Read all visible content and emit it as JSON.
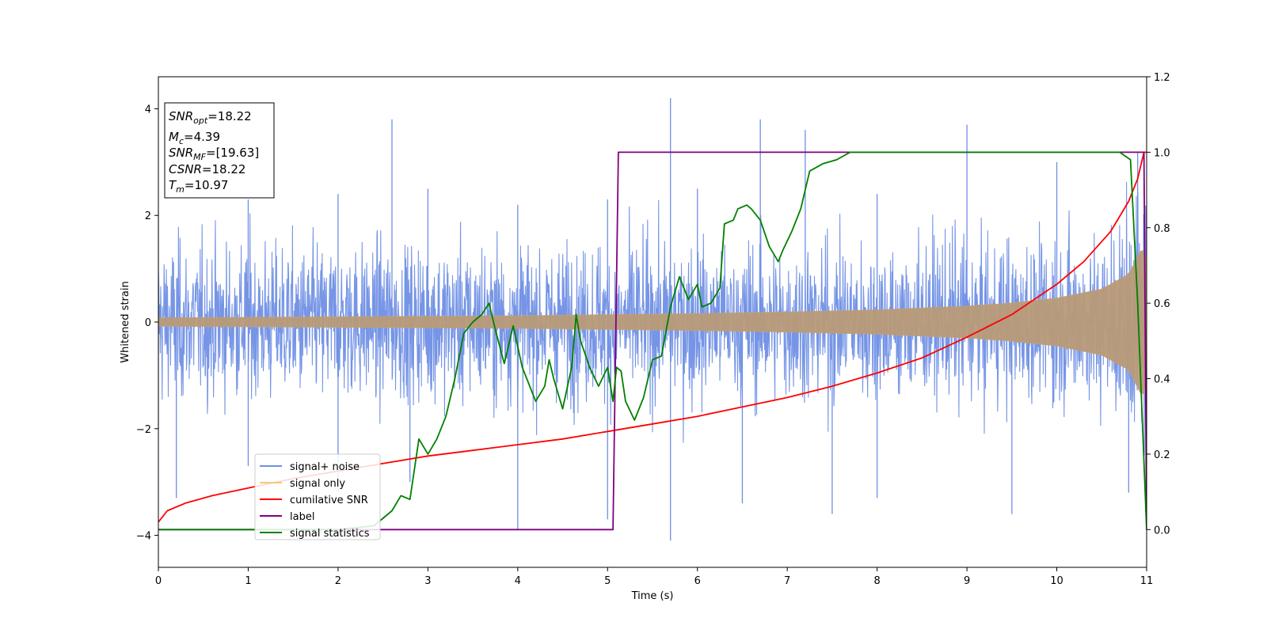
{
  "chart_data": {
    "type": "line",
    "xlabel": "Time (s)",
    "ylabel": "Whitened strain",
    "xlim": [
      0,
      11
    ],
    "ylim_left": [
      -4.6,
      4.6
    ],
    "ylim_right": [
      -0.1,
      1.2
    ],
    "x_ticks": [
      "0",
      "1",
      "2",
      "3",
      "4",
      "5",
      "6",
      "7",
      "8",
      "9",
      "10",
      "11"
    ],
    "y_left_ticks": [
      "−4",
      "−2",
      "0",
      "2",
      "4"
    ],
    "y_right_ticks": [
      "0.0",
      "0.2",
      "0.4",
      "0.6",
      "0.8",
      "1.0",
      "1.2"
    ],
    "grid": false,
    "info_box": {
      "snr_opt": {
        "sym": "SNR",
        "sub": "opt",
        "value": "=18.22"
      },
      "mc": {
        "sym": "M",
        "sub": "c",
        "value": "=4.39"
      },
      "snr_mf": {
        "sym": "SNR",
        "sub": "MF",
        "value": "=[19.63]"
      },
      "csnr": {
        "sym": "CSNR",
        "sub": "",
        "value": "=18.22"
      },
      "tm": {
        "sym": "T",
        "sub": "m",
        "value": "=10.97"
      }
    },
    "legend": {
      "placement": "lower-left",
      "entries": [
        {
          "label": "signal+ noise",
          "color": "#6f8fe5"
        },
        {
          "label": "signal only",
          "color": "#f5c97a"
        },
        {
          "label": "cumilative SNR",
          "color": "#ff0000"
        },
        {
          "label": "label",
          "color": "#800080"
        },
        {
          "label": "signal statistics",
          "color": "#008000"
        }
      ]
    },
    "series": [
      {
        "name": "signal+ noise",
        "axis": "left",
        "color": "#6f8fe5",
        "description_note": "",
        "peaks_upper": [
          [
            0,
            2.1
          ],
          [
            1,
            2.3
          ],
          [
            2,
            2.4
          ],
          [
            2.6,
            3.8
          ],
          [
            3,
            2.5
          ],
          [
            4,
            2.2
          ],
          [
            5,
            2.3
          ],
          [
            5.7,
            4.2
          ],
          [
            6,
            2.5
          ],
          [
            6.7,
            3.8
          ],
          [
            7.2,
            3.6
          ],
          [
            8,
            2.4
          ],
          [
            9,
            3.7
          ],
          [
            10,
            3.0
          ],
          [
            10.9,
            3.2
          ]
        ],
        "peaks_lower": [
          [
            0,
            -2.0
          ],
          [
            0.2,
            -3.3
          ],
          [
            1,
            -2.7
          ],
          [
            2,
            -3.2
          ],
          [
            2.8,
            -3.0
          ],
          [
            4,
            -3.9
          ],
          [
            5,
            -3.7
          ],
          [
            5.7,
            -4.1
          ],
          [
            6.5,
            -3.4
          ],
          [
            7.5,
            -3.6
          ],
          [
            8,
            -3.3
          ],
          [
            9.5,
            -3.6
          ],
          [
            10.8,
            -3.2
          ]
        ]
      },
      {
        "name": "signal only",
        "axis": "left",
        "color": "#f5c97a",
        "envelope": [
          [
            0,
            0.08
          ],
          [
            2,
            0.1
          ],
          [
            4,
            0.12
          ],
          [
            5,
            0.14
          ],
          [
            6,
            0.16
          ],
          [
            7,
            0.19
          ],
          [
            8,
            0.23
          ],
          [
            9,
            0.3
          ],
          [
            9.5,
            0.36
          ],
          [
            10,
            0.45
          ],
          [
            10.5,
            0.62
          ],
          [
            10.8,
            0.9
          ],
          [
            10.95,
            1.4
          ],
          [
            11,
            1.2
          ]
        ]
      },
      {
        "name": "cumilative SNR",
        "axis": "right",
        "color": "#ff0000",
        "points": [
          [
            0,
            0.02
          ],
          [
            0.1,
            0.05
          ],
          [
            0.3,
            0.07
          ],
          [
            0.6,
            0.09
          ],
          [
            1,
            0.11
          ],
          [
            1.5,
            0.135
          ],
          [
            2,
            0.155
          ],
          [
            2.5,
            0.175
          ],
          [
            3,
            0.195
          ],
          [
            3.5,
            0.21
          ],
          [
            4,
            0.225
          ],
          [
            4.5,
            0.24
          ],
          [
            5,
            0.26
          ],
          [
            5.5,
            0.28
          ],
          [
            6,
            0.3
          ],
          [
            6.5,
            0.325
          ],
          [
            7,
            0.35
          ],
          [
            7.5,
            0.38
          ],
          [
            8,
            0.415
          ],
          [
            8.5,
            0.455
          ],
          [
            9,
            0.51
          ],
          [
            9.5,
            0.57
          ],
          [
            10,
            0.65
          ],
          [
            10.3,
            0.71
          ],
          [
            10.6,
            0.79
          ],
          [
            10.8,
            0.87
          ],
          [
            10.9,
            0.93
          ],
          [
            10.97,
            1.0
          ],
          [
            11,
            1.0
          ]
        ]
      },
      {
        "name": "label",
        "axis": "right",
        "color": "#800080",
        "points": [
          [
            0,
            0.0
          ],
          [
            5.06,
            0.0
          ],
          [
            5.12,
            1.0
          ],
          [
            10.97,
            1.0
          ],
          [
            11,
            0.0
          ]
        ]
      },
      {
        "name": "signal statistics",
        "axis": "right",
        "color": "#008000",
        "points": [
          [
            0,
            0.0
          ],
          [
            1,
            0.0
          ],
          [
            2,
            0.0
          ],
          [
            2.4,
            0.01
          ],
          [
            2.6,
            0.05
          ],
          [
            2.7,
            0.09
          ],
          [
            2.8,
            0.08
          ],
          [
            2.9,
            0.24
          ],
          [
            3.0,
            0.2
          ],
          [
            3.1,
            0.24
          ],
          [
            3.2,
            0.3
          ],
          [
            3.3,
            0.4
          ],
          [
            3.4,
            0.52
          ],
          [
            3.5,
            0.55
          ],
          [
            3.6,
            0.57
          ],
          [
            3.68,
            0.6
          ],
          [
            3.75,
            0.53
          ],
          [
            3.85,
            0.44
          ],
          [
            3.95,
            0.54
          ],
          [
            4.05,
            0.43
          ],
          [
            4.1,
            0.4
          ],
          [
            4.2,
            0.34
          ],
          [
            4.3,
            0.38
          ],
          [
            4.35,
            0.45
          ],
          [
            4.4,
            0.4
          ],
          [
            4.5,
            0.32
          ],
          [
            4.6,
            0.43
          ],
          [
            4.65,
            0.57
          ],
          [
            4.7,
            0.5
          ],
          [
            4.8,
            0.43
          ],
          [
            4.9,
            0.38
          ],
          [
            5.0,
            0.43
          ],
          [
            5.06,
            0.34
          ],
          [
            5.1,
            0.43
          ],
          [
            5.15,
            0.42
          ],
          [
            5.2,
            0.34
          ],
          [
            5.3,
            0.29
          ],
          [
            5.4,
            0.35
          ],
          [
            5.5,
            0.45
          ],
          [
            5.6,
            0.46
          ],
          [
            5.7,
            0.59
          ],
          [
            5.8,
            0.67
          ],
          [
            5.9,
            0.61
          ],
          [
            6.0,
            0.65
          ],
          [
            6.05,
            0.59
          ],
          [
            6.15,
            0.6
          ],
          [
            6.25,
            0.64
          ],
          [
            6.3,
            0.81
          ],
          [
            6.4,
            0.82
          ],
          [
            6.45,
            0.85
          ],
          [
            6.55,
            0.86
          ],
          [
            6.6,
            0.85
          ],
          [
            6.7,
            0.82
          ],
          [
            6.8,
            0.75
          ],
          [
            6.9,
            0.71
          ],
          [
            6.95,
            0.74
          ],
          [
            7.05,
            0.79
          ],
          [
            7.15,
            0.85
          ],
          [
            7.25,
            0.95
          ],
          [
            7.4,
            0.97
          ],
          [
            7.55,
            0.98
          ],
          [
            7.7,
            1.0
          ],
          [
            8.0,
            1.0
          ],
          [
            9.0,
            1.0
          ],
          [
            10.0,
            1.0
          ],
          [
            10.7,
            1.0
          ],
          [
            10.82,
            0.98
          ],
          [
            10.9,
            0.6
          ],
          [
            11,
            0.0
          ]
        ]
      }
    ]
  }
}
